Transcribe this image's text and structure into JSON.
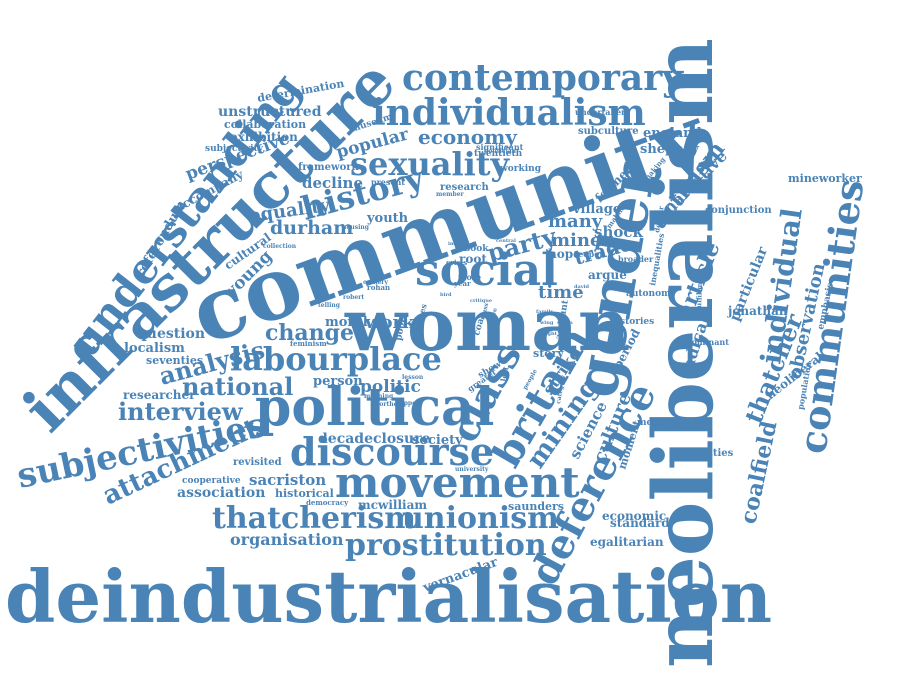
{
  "accent_color": "#4a83b6",
  "background_color": "#ffffff",
  "words": [
    "deindustrialisation",
    "neoliberalism",
    "community",
    "infrastructure",
    "woman",
    "understanding",
    "gender",
    "political",
    "contemporary",
    "individualism",
    "communities",
    "subjectivities",
    "discourse",
    "movement",
    "labourplace",
    "social",
    "thatcherism",
    "unionism",
    "prostitution",
    "deference",
    "britain",
    "class",
    "sexuality",
    "history",
    "economy",
    "mining",
    "individual",
    "thatcher",
    "coalfield",
    "national",
    "interview",
    "attachment",
    "activism",
    "narrative",
    "article",
    "radical",
    "observation",
    "neoliberal",
    "particular",
    "jonathan",
    "emphasise",
    "population",
    "mineworker",
    "conjunction",
    "england",
    "sheppey",
    "subculture",
    "undertaken",
    "miner",
    "trade",
    "shock",
    "village",
    "many",
    "party",
    "time",
    "argue",
    "hope",
    "change",
    "analysis",
    "work",
    "politic",
    "person",
    "sacriston",
    "association",
    "historical",
    "revisited",
    "organisation",
    "decadeclosure",
    "society",
    "culture",
    "science",
    "moment",
    "strike",
    "period",
    "story",
    "durham",
    "equality",
    "youth",
    "decline",
    "framework",
    "popular",
    "museum",
    "perspective",
    "accompany",
    "exhibition",
    "collaboration",
    "unstructured",
    "determination",
    "subjectivity",
    "referendum",
    "young",
    "cultural",
    "question",
    "localism",
    "seventies",
    "researcher",
    "moral",
    "feminism",
    "mcwilliam",
    "democracy",
    "cooperative",
    "saunders",
    "economic",
    "standard",
    "egalitarian",
    "vernacular",
    "identities",
    "modern",
    "dominant",
    "stories",
    "autonomy",
    "inequalities",
    "fulfillment",
    "deeper",
    "making",
    "former",
    "unmaking",
    "research",
    "working",
    "politician",
    "significant",
    "twentieth",
    "present",
    "member",
    "collection",
    "housing",
    "root",
    "book",
    "crisis",
    "reopen",
    "broader",
    "year",
    "more",
    "rohan",
    "colliery",
    "telling",
    "robert",
    "lesson",
    "northern",
    "support",
    "university",
    "meaning",
    "poor",
    "james",
    "coal",
    "mass",
    "live",
    "left",
    "greater",
    "show",
    "people",
    "idea",
    "account",
    "category",
    "vernon",
    "image",
    "central",
    "bird",
    "wing",
    "family",
    "right",
    "stalin",
    "david",
    "critique"
  ]
}
